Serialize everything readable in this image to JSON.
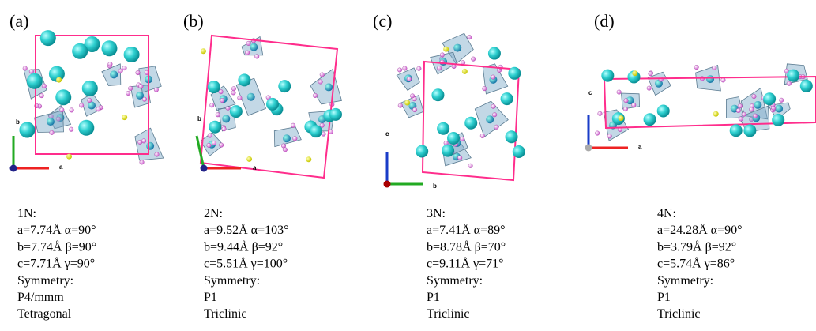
{
  "panels": [
    {
      "label": "(a)",
      "axes": [
        "b",
        "a"
      ],
      "lines": [
        "1N:",
        "a=7.74Å  α=90°",
        "b=7.74Å  β=90°",
        "c=7.71Å  γ=90°",
        "Symmetry:",
        "P4/mmm",
        "Tetragonal"
      ]
    },
    {
      "label": "(b)",
      "axes": [
        "b",
        "a"
      ],
      "lines": [
        "2N:",
        "a=9.52Å  α=103°",
        "b=9.44Å  β=92°",
        "c=5.51Å  γ=100°",
        "Symmetry:",
        "P1",
        "Triclinic"
      ]
    },
    {
      "label": "(c)",
      "axes": [
        "c",
        "b"
      ],
      "lines": [
        "3N:",
        "a=7.41Å  α=89°",
        "b=8.78Å  β=70°",
        "c=9.11Å  γ=71°",
        "Symmetry:",
        "P1",
        "Triclinic"
      ]
    },
    {
      "label": "(d)",
      "axes": [
        "c",
        "a"
      ],
      "lines": [
        "4N:",
        "a=24.28Å  α=90°",
        "b=3.79Å  β=92°",
        "c=5.74Å  γ=86°",
        "Symmetry:",
        "P1",
        "Triclinic"
      ]
    }
  ]
}
